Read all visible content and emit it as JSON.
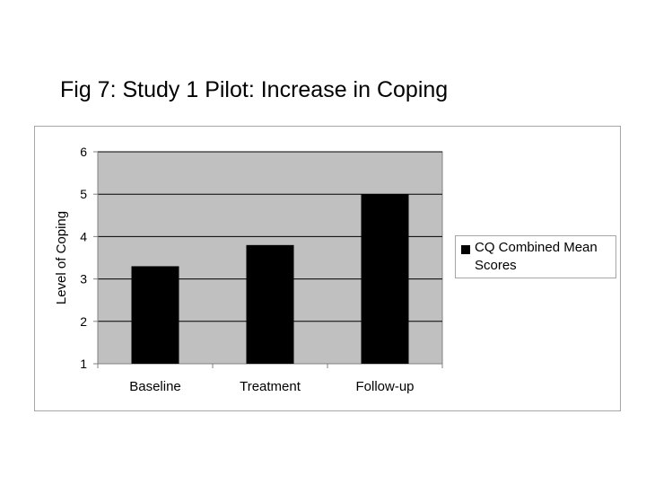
{
  "title": "Fig 7: Study 1 Pilot: Increase in Coping",
  "chart_data": {
    "type": "bar",
    "title": "",
    "xlabel": "",
    "ylabel": "Level of Coping",
    "categories": [
      "Baseline",
      "Treatment",
      "Follow-up"
    ],
    "series": [
      {
        "name": "CQ Combined Mean Scores",
        "values": [
          3.3,
          3.8,
          5.0
        ]
      }
    ],
    "ylim": [
      1,
      6
    ],
    "yticks": [
      1,
      2,
      3,
      4,
      5,
      6
    ],
    "grid": true,
    "legend": "right",
    "colors": {
      "bar": "#000000",
      "plot_bg": "#c0c0c0",
      "grid": "#000000"
    }
  }
}
